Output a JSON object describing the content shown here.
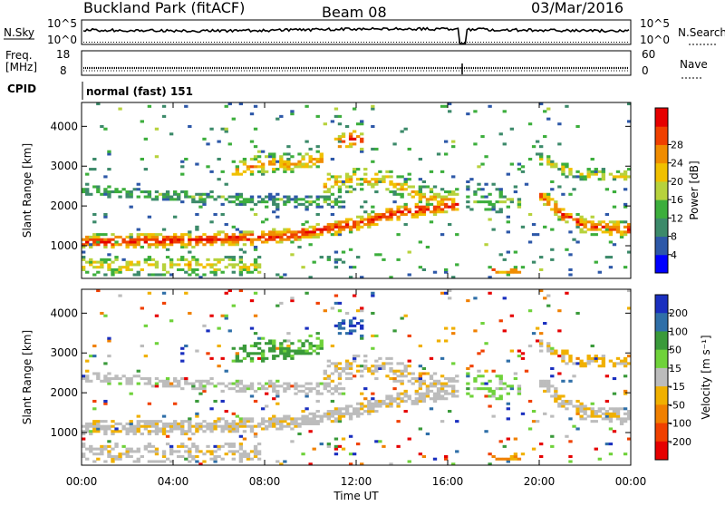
{
  "header": {
    "site": "Buckland Park (fitACF)",
    "beam": "Beam 08",
    "date": "03/Mar/2016"
  },
  "noise_panel": {
    "left_label": "N.Sky",
    "right_label": "N.Search",
    "left_top_tick": "10^5",
    "left_bottom_tick": "10^0",
    "right_top_tick": "10^5",
    "right_bottom_tick": "10^0"
  },
  "freq_panel": {
    "left_label_line1": "Freq.",
    "left_label_line2": "[MHz]",
    "right_label": "Nave",
    "left_top_tick": "18",
    "left_bottom_tick": "8",
    "right_top_tick": "60",
    "right_bottom_tick": "0"
  },
  "cpid_panel": {
    "label": "CPID",
    "value": "normal (fast) 151"
  },
  "x_axis": {
    "label": "Time UT",
    "ticks": [
      "00:00",
      "04:00",
      "08:00",
      "12:00",
      "16:00",
      "20:00",
      "00:00"
    ]
  },
  "chart_data": [
    {
      "type": "heatmap",
      "panel": "power",
      "ylabel": "Slant Range [km]",
      "yticks": [
        "1000",
        "2000",
        "3000",
        "4000"
      ],
      "ylim": [
        180,
        4600
      ],
      "xlim": [
        0,
        24
      ],
      "colorbar": {
        "label": "Power [dB]",
        "ticks": [
          "4",
          "8",
          "12",
          "16",
          "20",
          "24",
          "28"
        ],
        "colors": [
          "#0000ff",
          "#2d58a8",
          "#3c8a6a",
          "#3cae3c",
          "#b7d23c",
          "#f0c000",
          "#f08c00",
          "#f04000",
          "#e60000"
        ],
        "range": [
          0,
          30
        ]
      }
    },
    {
      "type": "heatmap",
      "panel": "velocity",
      "ylabel": "Slant Range [km]",
      "yticks": [
        "1000",
        "2000",
        "3000",
        "4000"
      ],
      "ylim": [
        180,
        4600
      ],
      "xlim": [
        0,
        24
      ],
      "colorbar": {
        "label": "Velocity [m s⁻¹]",
        "ticks": [
          "200",
          "100",
          "50",
          "15",
          "-15",
          "-50",
          "-100",
          "-200"
        ],
        "colors": [
          "#1a2fbf",
          "#2f6fa8",
          "#3a9a3a",
          "#6fd23a",
          "#bcbcbc",
          "#f0b000",
          "#f08000",
          "#f04000",
          "#e60000"
        ],
        "range": [
          -250,
          250
        ]
      }
    }
  ]
}
